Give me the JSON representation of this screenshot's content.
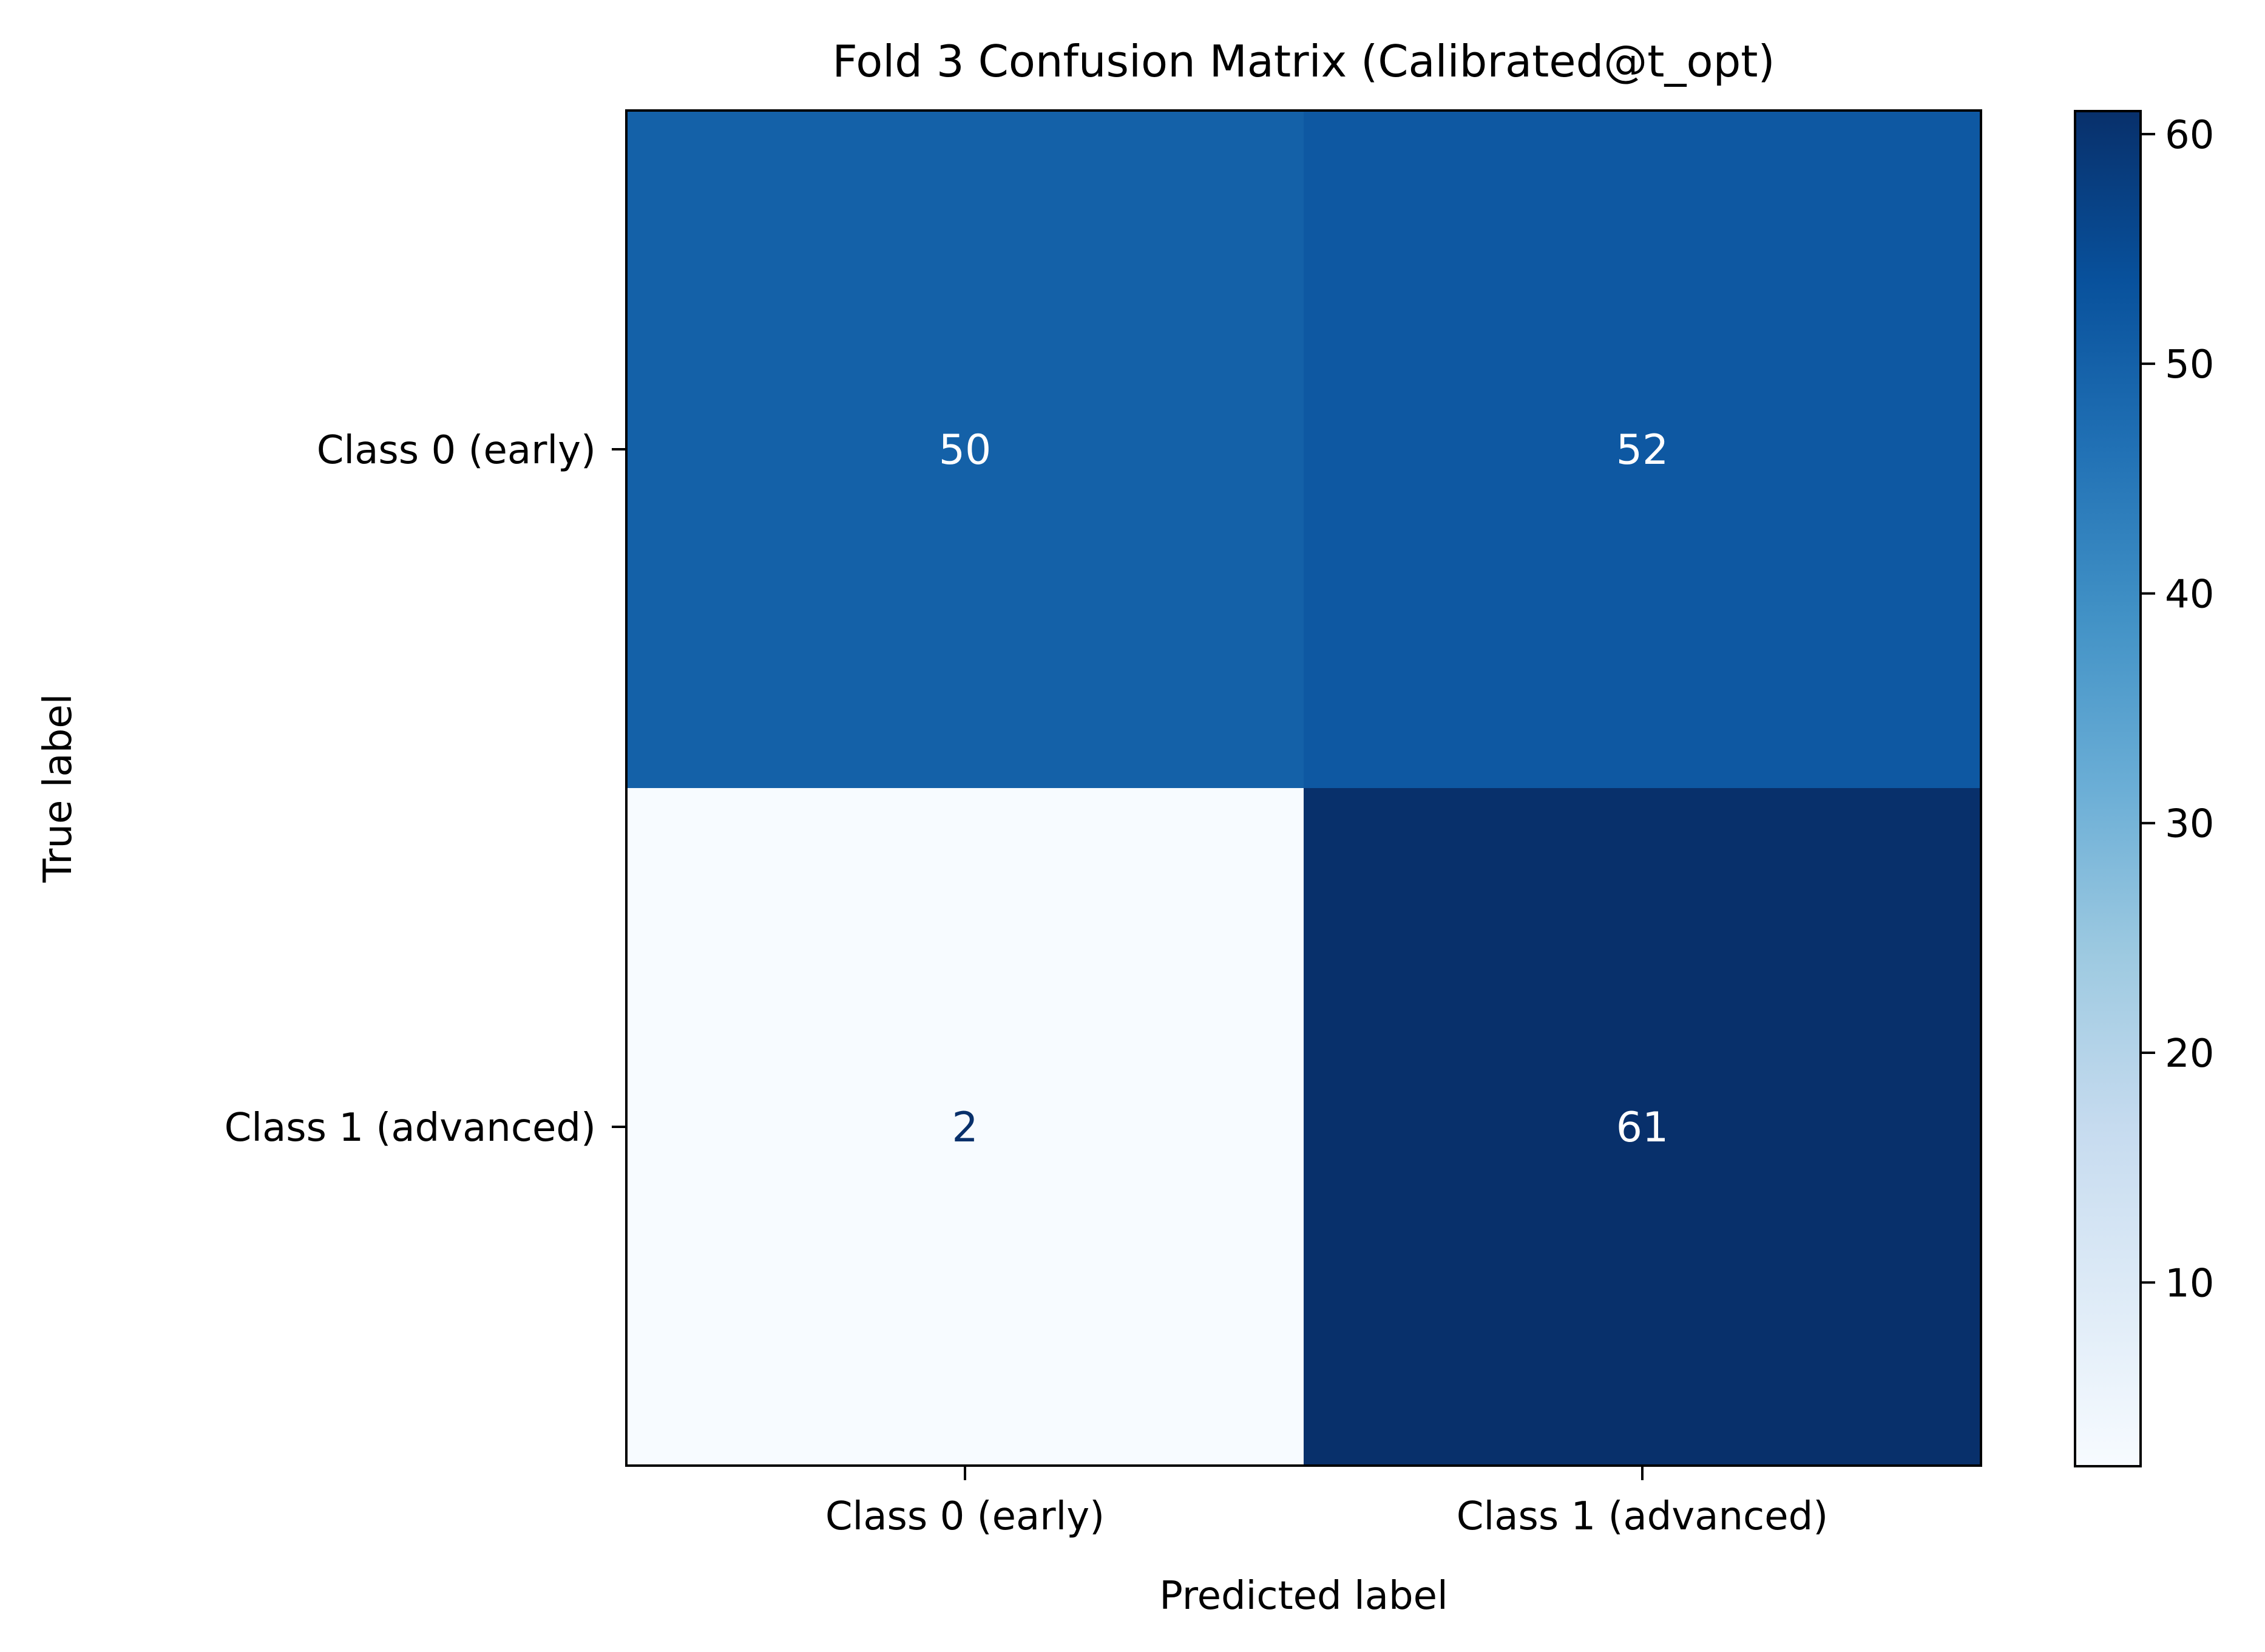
{
  "chart_data": {
    "type": "heatmap",
    "title": "Fold 3 Confusion Matrix (Calibrated@t_opt)",
    "xlabel": "Predicted label",
    "ylabel": "True label",
    "x_categories": [
      "Class 0 (early)",
      "Class 1 (advanced)"
    ],
    "y_categories": [
      "Class 0 (early)",
      "Class 1 (advanced)"
    ],
    "matrix": [
      [
        50,
        52
      ],
      [
        2,
        61
      ]
    ],
    "colormap": "Blues",
    "colorbar": {
      "range": [
        2,
        61
      ],
      "ticks": [
        10,
        20,
        30,
        40,
        50,
        60
      ]
    },
    "colors": {
      "cmap_stops": [
        "#f7fbff",
        "#deebf7",
        "#c6dbef",
        "#9ecae1",
        "#6baed6",
        "#4292c6",
        "#2171b5",
        "#08519c",
        "#08306b"
      ],
      "text_light": "#ffffff",
      "text_dark": "#08306b"
    },
    "grid": false
  }
}
